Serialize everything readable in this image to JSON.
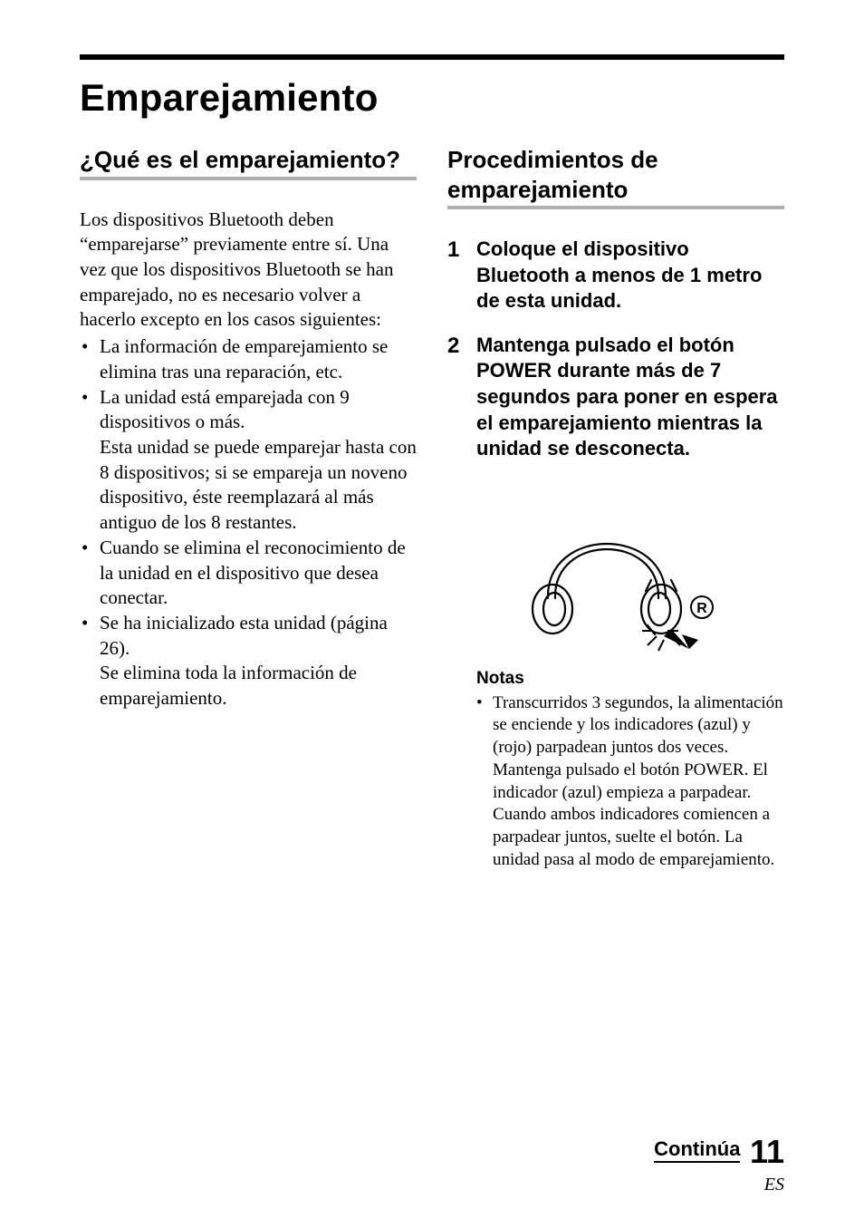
{
  "chapter_title": "Emparejamiento",
  "left": {
    "heading": "¿Qué es el emparejamiento?",
    "intro": "Los dispositivos Bluetooth deben “emparejarse” previamente entre sí. Una vez que los dispositivos Bluetooth se han emparejado, no es necesario volver a hacerlo excepto en los casos siguientes:",
    "bullets": [
      "La información de emparejamiento se elimina tras una reparación, etc.",
      "La unidad está emparejada con 9 dispositivos o más.\nEsta unidad se puede emparejar hasta con 8 dispositivos; si se empareja un noveno dispositivo, éste reemplazará al más antiguo de los 8 restantes.",
      "Cuando se elimina el reconocimiento de la unidad en el dispositivo que desea conectar.",
      "Se ha inicializado esta unidad (página 26).\nSe elimina toda la información de emparejamiento."
    ]
  },
  "right": {
    "heading": "Procedimientos de emparejamiento",
    "steps": [
      {
        "n": "1",
        "text": "Coloque el dispositivo Bluetooth a menos de 1 metro de esta unidad."
      },
      {
        "n": "2",
        "text": "Mantenga pulsado el botón POWER durante más de 7 segundos para poner en espera el emparejamiento mientras la unidad se desconecta."
      }
    ],
    "r_label": "R",
    "notes_heading": "Notas",
    "notes": [
      "Transcurridos 3 segundos, la alimentación se enciende y los indicadores (azul) y (rojo) parpadean juntos dos veces. Mantenga pulsado el botón POWER. El indicador (azul) empieza a parpadear. Cuando ambos indicadores comiencen a parpadear juntos, suelte el botón. La unidad pasa al modo de emparejamiento."
    ]
  },
  "footer": {
    "continue_label": "Continúa",
    "page_number": "11",
    "lang": "ES"
  },
  "colors": {
    "rule_gray": "#b0b0b0",
    "black": "#000000",
    "bg": "#ffffff"
  }
}
